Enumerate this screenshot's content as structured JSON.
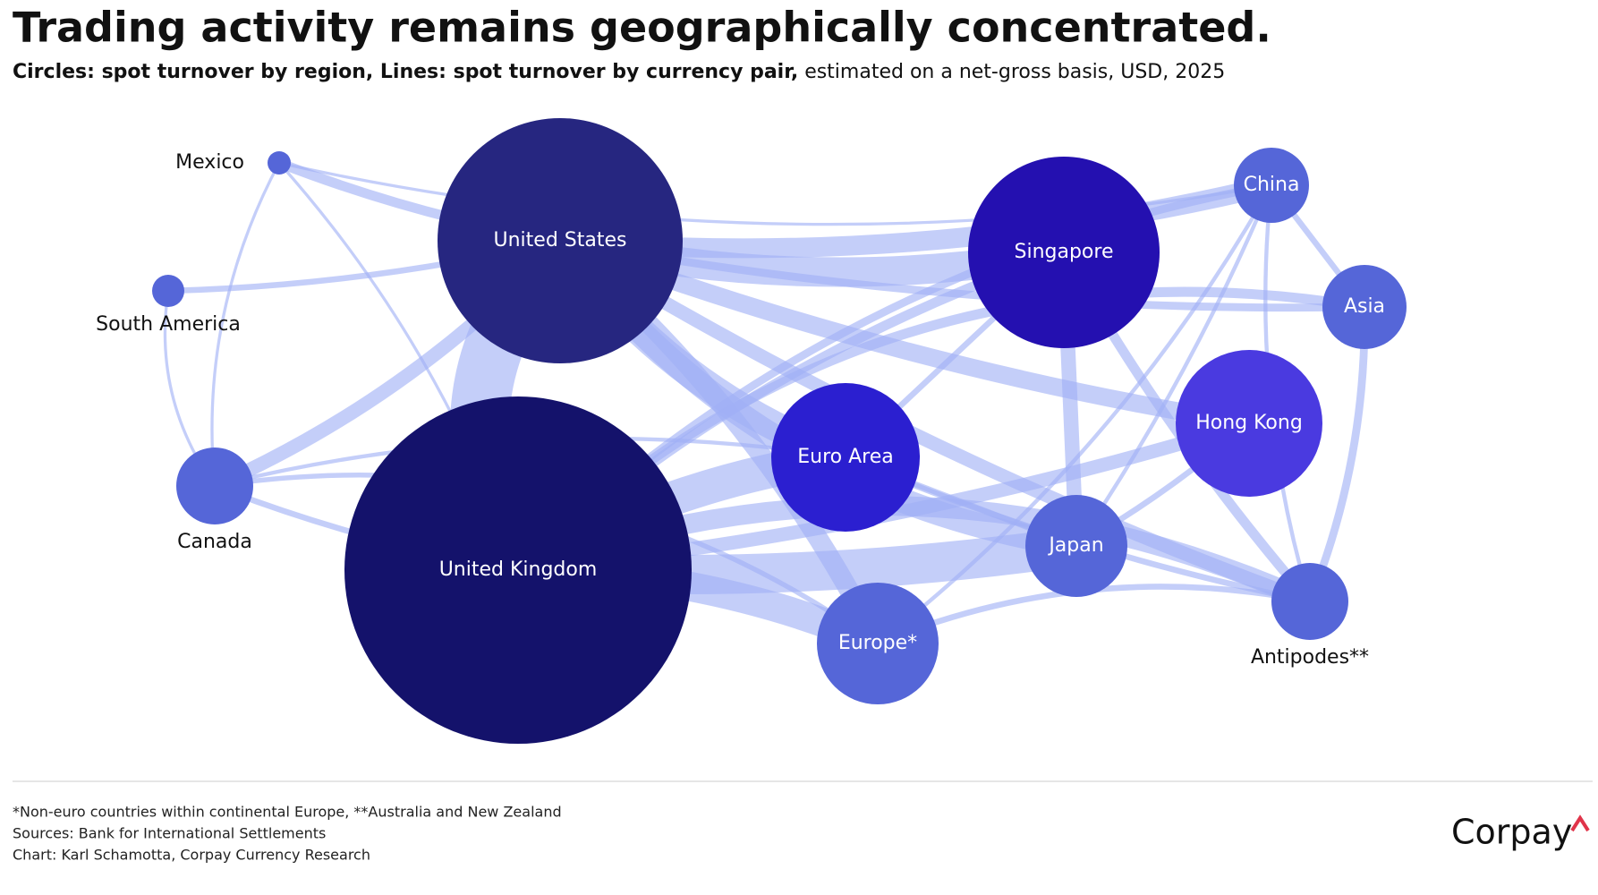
{
  "header": {
    "title": "Trading activity remains geographically concentrated.",
    "subtitle_bold": "Circles: spot turnover by region, Lines: spot turnover by currency pair,",
    "subtitle_rest": "estimated on a net-gross basis, USD, 2025"
  },
  "nodes": [
    {
      "label": "Mexico"
    },
    {
      "label": "South America"
    },
    {
      "label": "United States"
    },
    {
      "label": "Canada"
    },
    {
      "label": "United Kingdom"
    },
    {
      "label": "Singapore"
    },
    {
      "label": "China"
    },
    {
      "label": "Asia"
    },
    {
      "label": "Hong Kong"
    },
    {
      "label": "Euro Area"
    },
    {
      "label": "Japan"
    },
    {
      "label": "Europe*"
    },
    {
      "label": "Antipodes**"
    }
  ],
  "footer": {
    "notes": [
      "*Non-euro countries within continental Europe, **Australia and New Zealand",
      "Sources: Bank for International Settlements",
      "Chart: Karl Schamotta, Corpay Currency Research"
    ],
    "logo": "Corpay"
  }
}
